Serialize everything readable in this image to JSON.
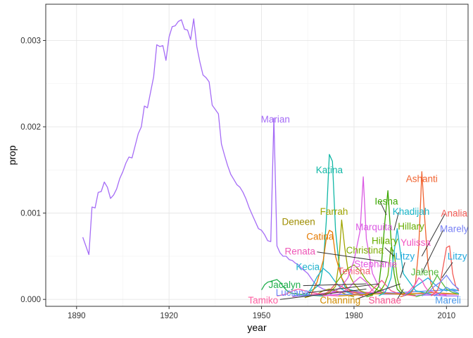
{
  "chart_data": {
    "type": "line",
    "xlabel": "year",
    "ylabel": "prop",
    "xlim": [
      1880,
      2017
    ],
    "ylim": [
      -8e-05,
      0.00342
    ],
    "x_ticks": [
      1890,
      1920,
      1950,
      1980,
      2010
    ],
    "x_tick_labels": [
      "1890",
      "1920",
      "1950",
      "1980",
      "2010"
    ],
    "y_ticks": [
      0,
      0.001,
      0.002,
      0.003
    ],
    "y_tick_labels": [
      "0.000",
      "0.001",
      "0.002",
      "0.003"
    ],
    "grid": true,
    "series": [
      {
        "name": "Marian",
        "color": "#a56cf6",
        "x": [
          1892,
          1894,
          1895,
          1896,
          1897,
          1898,
          1899,
          1900,
          1901,
          1902,
          1903,
          1904,
          1905,
          1906,
          1907,
          1908,
          1909,
          1910,
          1911,
          1912,
          1913,
          1914,
          1915,
          1916,
          1917,
          1918,
          1919,
          1920,
          1921,
          1922,
          1923,
          1924,
          1925,
          1926,
          1927,
          1928,
          1929,
          1930,
          1931,
          1932,
          1933,
          1934,
          1935,
          1936,
          1937,
          1938,
          1939,
          1940,
          1941,
          1942,
          1943,
          1944,
          1945,
          1946,
          1947,
          1948,
          1949,
          1950,
          1951,
          1952,
          1953,
          1954,
          1955,
          1956,
          1957,
          1958,
          1959,
          1960,
          1961,
          1962,
          1963,
          1964,
          1965,
          1966,
          1967,
          1968,
          1969,
          1970,
          1972,
          1975,
          1980,
          1985,
          1990,
          1995,
          2000,
          2005,
          2010,
          2014
        ],
        "y": [
          0.00072,
          0.00052,
          0.00107,
          0.00106,
          0.00124,
          0.00125,
          0.00136,
          0.0013,
          0.00117,
          0.00121,
          0.00128,
          0.0014,
          0.00148,
          0.00158,
          0.00165,
          0.00164,
          0.00178,
          0.00192,
          0.002,
          0.00224,
          0.00222,
          0.0024,
          0.00258,
          0.00295,
          0.00293,
          0.00294,
          0.00277,
          0.00304,
          0.00316,
          0.00317,
          0.00322,
          0.00324,
          0.00313,
          0.00312,
          0.00301,
          0.00325,
          0.00293,
          0.00275,
          0.0026,
          0.00257,
          0.00252,
          0.00225,
          0.0022,
          0.00215,
          0.0018,
          0.00167,
          0.00155,
          0.00145,
          0.00139,
          0.00133,
          0.0013,
          0.00124,
          0.00116,
          0.00106,
          0.00098,
          0.0009,
          0.00082,
          0.0008,
          0.00075,
          0.00068,
          0.00067,
          0.0021,
          0.00062,
          0.00054,
          0.0005,
          0.0005,
          0.00046,
          0.00045,
          0.00042,
          0.0004,
          0.00036,
          0.00033,
          0.0003,
          0.00025,
          0.0002,
          0.00016,
          0.00014,
          0.00012,
          0.0001,
          9e-05,
          8e-05,
          7e-05,
          6e-05,
          6e-05,
          5e-05,
          5e-05,
          4e-05,
          4e-05
        ]
      },
      {
        "name": "Katina",
        "color": "#11b7a6",
        "x": [
          1965,
          1966,
          1967,
          1968,
          1969,
          1970,
          1971,
          1972,
          1973,
          1974,
          1975,
          1976,
          1977,
          1978,
          1980,
          1983,
          1986,
          1990
        ],
        "y": [
          3e-05,
          0.0001,
          0.00012,
          0.00015,
          0.00018,
          0.0004,
          0.0009,
          0.00168,
          0.0016,
          0.0008,
          0.00045,
          0.00025,
          0.00015,
          0.00012,
          0.0001,
          8e-05,
          7e-05,
          6e-05
        ]
      },
      {
        "name": "Deneen",
        "color": "#9e8d00",
        "x": [
          1964,
          1966,
          1968,
          1970,
          1972,
          1974,
          1976,
          1978,
          1980
        ],
        "y": [
          2e-05,
          4e-05,
          6e-05,
          0.0001,
          0.00012,
          0.0001,
          8e-05,
          5e-05,
          3e-05
        ]
      },
      {
        "name": "Catina",
        "color": "#e57a00",
        "x": [
          1966,
          1968,
          1970,
          1971,
          1972,
          1973,
          1974,
          1976,
          1978,
          1980,
          1984
        ],
        "y": [
          5e-05,
          0.0002,
          0.00045,
          0.0007,
          0.0008,
          0.00078,
          0.0005,
          0.00025,
          0.00012,
          8e-05,
          5e-05
        ]
      },
      {
        "name": "Renata",
        "color": "#ee57b7",
        "x": [
          1960,
          1964,
          1968,
          1972,
          1976,
          1980,
          1985,
          1990,
          1995,
          2000,
          2005,
          2010,
          2014
        ],
        "y": [
          3e-05,
          5e-05,
          6e-05,
          8e-05,
          9e-05,
          9e-05,
          8e-05,
          8e-05,
          7e-05,
          7e-05,
          6e-05,
          6e-05,
          6e-05
        ]
      },
      {
        "name": "Kecia",
        "color": "#1fb2cd",
        "x": [
          1964,
          1966,
          1968,
          1970,
          1972,
          1974,
          1976,
          1978,
          1980,
          1983
        ],
        "y": [
          4e-05,
          0.00012,
          0.00026,
          0.00036,
          0.0003,
          0.0002,
          0.00012,
          8e-05,
          6e-05,
          4e-05
        ]
      },
      {
        "name": "Jacalyn",
        "color": "#1fae4c",
        "x": [
          1950,
          1951,
          1952,
          1953,
          1954,
          1955,
          1956,
          1957,
          1958,
          1959,
          1960,
          1962,
          1965,
          1970
        ],
        "y": [
          0.00011,
          0.00017,
          0.0002,
          0.00021,
          0.00022,
          0.00023,
          0.0002,
          0.00015,
          0.00011,
          8e-05,
          7e-05,
          6e-05,
          5e-05,
          4e-05
        ]
      },
      {
        "name": "Luciana",
        "color": "#6c86f9",
        "x": [
          1960,
          1970,
          1980,
          1990,
          2000,
          2005,
          2010,
          2014
        ],
        "y": [
          4e-05,
          5e-05,
          6e-05,
          7e-05,
          9e-05,
          0.0001,
          0.00011,
          0.0001
        ]
      },
      {
        "name": "Tamiko",
        "color": "#ff5fa2",
        "x": [
          1955,
          1958,
          1960,
          1962,
          1964,
          1966,
          1968,
          1970,
          1975
        ],
        "y": [
          4e-05,
          6e-05,
          0.0001,
          0.00012,
          0.0001,
          8e-05,
          7e-05,
          5e-05,
          4e-05
        ]
      },
      {
        "name": "Farrah",
        "color": "#a0a500",
        "x": [
          1970,
          1972,
          1974,
          1975,
          1976,
          1977,
          1978,
          1979,
          1980,
          1982,
          1985
        ],
        "y": [
          4e-05,
          8e-05,
          0.00015,
          0.0004,
          0.00092,
          0.0006,
          0.00035,
          0.00025,
          0.00018,
          0.0001,
          6e-05
        ]
      },
      {
        "name": "Christina",
        "color": "#7dab00",
        "x": [
          1970,
          1972,
          1974,
          1976,
          1978,
          1980,
          1982,
          1984,
          1986,
          1988,
          1990
        ],
        "y": [
          5e-05,
          0.0001,
          0.00018,
          0.00028,
          0.00036,
          0.0004,
          0.00033,
          0.00022,
          0.00015,
          0.0001,
          7e-05
        ]
      },
      {
        "name": "Tenisha",
        "color": "#f35e77",
        "x": [
          1970,
          1972,
          1974,
          1976,
          1978,
          1980,
          1983
        ],
        "y": [
          4e-05,
          0.0001,
          0.00018,
          0.00015,
          0.0001,
          6e-05,
          4e-05
        ]
      },
      {
        "name": "Marquita",
        "color": "#db5be3",
        "x": [
          1972,
          1974,
          1976,
          1978,
          1980,
          1982,
          1983,
          1984,
          1986,
          1988,
          1990
        ],
        "y": [
          5e-05,
          0.0001,
          0.00015,
          0.00025,
          0.00045,
          0.0008,
          0.00142,
          0.0007,
          0.0003,
          0.00015,
          8e-05
        ]
      },
      {
        "name": "Stephanie",
        "color": "#e359df",
        "x": [
          1970,
          1975,
          1978,
          1980,
          1982,
          1984,
          1986,
          1990
        ],
        "y": [
          4e-05,
          6e-05,
          0.00012,
          0.0002,
          0.00026,
          0.0002,
          0.0001,
          6e-05
        ]
      },
      {
        "name": "Iesha",
        "color": "#3aa600",
        "x": [
          1984,
          1986,
          1988,
          1989,
          1990,
          1991,
          1992,
          1993,
          1994,
          1996
        ],
        "y": [
          3e-05,
          5e-05,
          0.00015,
          0.00045,
          0.0009,
          0.00126,
          0.0007,
          0.0003,
          0.00012,
          5e-05
        ]
      },
      {
        "name": "Hillary",
        "color": "#67ad00",
        "x": [
          1985,
          1987,
          1989,
          1990,
          1991,
          1992,
          1993,
          1994,
          1995,
          1996,
          1997,
          2000
        ],
        "y": [
          4e-05,
          8e-05,
          0.00012,
          0.00018,
          0.00028,
          0.0006,
          0.00055,
          0.00025,
          0.00012,
          8e-05,
          6e-05,
          5e-05
        ]
      },
      {
        "name": "Shanae",
        "color": "#f5528f",
        "x": [
          1982,
          1985,
          1987,
          1989,
          1990,
          1992,
          1995,
          1998,
          2000
        ],
        "y": [
          4e-05,
          8e-05,
          0.00015,
          0.00022,
          0.00018,
          0.0001,
          6e-05,
          5e-05,
          4e-05
        ]
      },
      {
        "name": "Channing",
        "color": "#d28c00",
        "x": [
          1975,
          1980,
          1985,
          1990,
          1995,
          2000,
          2005,
          2010,
          2014
        ],
        "y": [
          4e-05,
          5e-05,
          6e-05,
          7e-05,
          6e-05,
          7e-05,
          8e-05,
          7e-05,
          6e-05
        ]
      },
      {
        "name": "Khadijah",
        "color": "#19b6c8",
        "x": [
          1988,
          1990,
          1991,
          1992,
          1993,
          1994,
          1996,
          2000,
          2005
        ],
        "y": [
          4e-05,
          8e-05,
          0.00015,
          0.00025,
          0.00055,
          0.00082,
          0.0003,
          0.0001,
          6e-05
        ]
      },
      {
        "name": "Ashanti",
        "color": "#f0622f",
        "x": [
          1995,
          1998,
          1999,
          2000,
          2001,
          2002,
          2003,
          2004,
          2005,
          2006,
          2008
        ],
        "y": [
          3e-05,
          6e-05,
          0.0001,
          0.0002,
          0.0006,
          0.00148,
          0.0009,
          0.0004,
          0.00018,
          0.0001,
          5e-05
        ]
      },
      {
        "name": "Litzy",
        "color": "#20a9de",
        "x": [
          1996,
          1998,
          2000,
          2002,
          2004,
          2006,
          2008,
          2010,
          2012,
          2014
        ],
        "y": [
          4e-05,
          8e-05,
          0.00015,
          0.0002,
          0.00025,
          0.00018,
          0.00012,
          0.0001,
          0.00012,
          0.0001
        ]
      },
      {
        "name": "Yulissa",
        "color": "#f156c2",
        "x": [
          1996,
          1998,
          2000,
          2001,
          2002,
          2003,
          2004,
          2006,
          2008,
          2010
        ],
        "y": [
          4e-05,
          0.0001,
          0.00018,
          0.00025,
          0.00022,
          0.00015,
          0.0001,
          8e-05,
          6e-05,
          5e-05
        ]
      },
      {
        "name": "Jalene",
        "color": "#55ba3d",
        "x": [
          2000,
          2003,
          2005,
          2007,
          2008,
          2010,
          2012,
          2014
        ],
        "y": [
          3e-05,
          6e-05,
          0.00015,
          0.00028,
          0.00022,
          0.00012,
          8e-05,
          6e-05
        ]
      },
      {
        "name": "Analia",
        "color": "#f35b56",
        "x": [
          2005,
          2007,
          2008,
          2009,
          2010,
          2011,
          2012,
          2013,
          2014
        ],
        "y": [
          4e-05,
          0.0001,
          0.0002,
          0.0004,
          0.0006,
          0.00062,
          0.0003,
          0.00015,
          0.0001
        ]
      },
      {
        "name": "Marely",
        "color": "#7a83f5",
        "x": [
          2002,
          2004,
          2006,
          2008,
          2010,
          2012,
          2014
        ],
        "y": [
          4e-05,
          8e-05,
          0.00015,
          0.0002,
          0.00028,
          0.00018,
          0.00012
        ]
      },
      {
        "name": "Mareli",
        "color": "#4b99ec",
        "x": [
          2006,
          2008,
          2010,
          2012,
          2014
        ],
        "y": [
          4e-05,
          8e-05,
          0.00014,
          0.0001,
          7e-05
        ]
      }
    ],
    "labels": [
      {
        "text": "Marian",
        "color": "#a56cf6"
      },
      {
        "text": "Katina",
        "color": "#11b7a6"
      },
      {
        "text": "Ashanti",
        "color": "#f0622f"
      },
      {
        "text": "Iesha",
        "color": "#3aa600"
      },
      {
        "text": "Deneen",
        "color": "#9e8d00"
      },
      {
        "text": "Farrah",
        "color": "#a0a500"
      },
      {
        "text": "Khadijah",
        "color": "#19b6c8"
      },
      {
        "text": "Analia",
        "color": "#f35b56"
      },
      {
        "text": "Hillary",
        "color": "#67ad00"
      },
      {
        "text": "Marquita",
        "color": "#db5be3"
      },
      {
        "text": "Marely",
        "color": "#7a83f5"
      },
      {
        "text": "Catina",
        "color": "#e57a00"
      },
      {
        "text": "Hillary",
        "color": "#67ad00"
      },
      {
        "text": "Yulissa",
        "color": "#f156c2"
      },
      {
        "text": "Christina",
        "color": "#7dab00"
      },
      {
        "text": "Renata",
        "color": "#ee57b7"
      },
      {
        "text": "Litzy",
        "color": "#20a9de"
      },
      {
        "text": "Litzy",
        "color": "#20a9de"
      },
      {
        "text": "Stephanie",
        "color": "#e359df"
      },
      {
        "text": "Kecia",
        "color": "#1fb2cd"
      },
      {
        "text": "Tenisha",
        "color": "#f35e77"
      },
      {
        "text": "Jalene",
        "color": "#55ba3d"
      },
      {
        "text": "Jacalyn",
        "color": "#1fae4c"
      },
      {
        "text": "Luciana",
        "color": "#6c86f9"
      },
      {
        "text": "Mareli",
        "color": "#4b99ec"
      },
      {
        "text": "Tamiko",
        "color": "#ff5fa2"
      },
      {
        "text": "Channing",
        "color": "#d28c00"
      },
      {
        "text": "Shanae",
        "color": "#f5528f"
      }
    ]
  }
}
